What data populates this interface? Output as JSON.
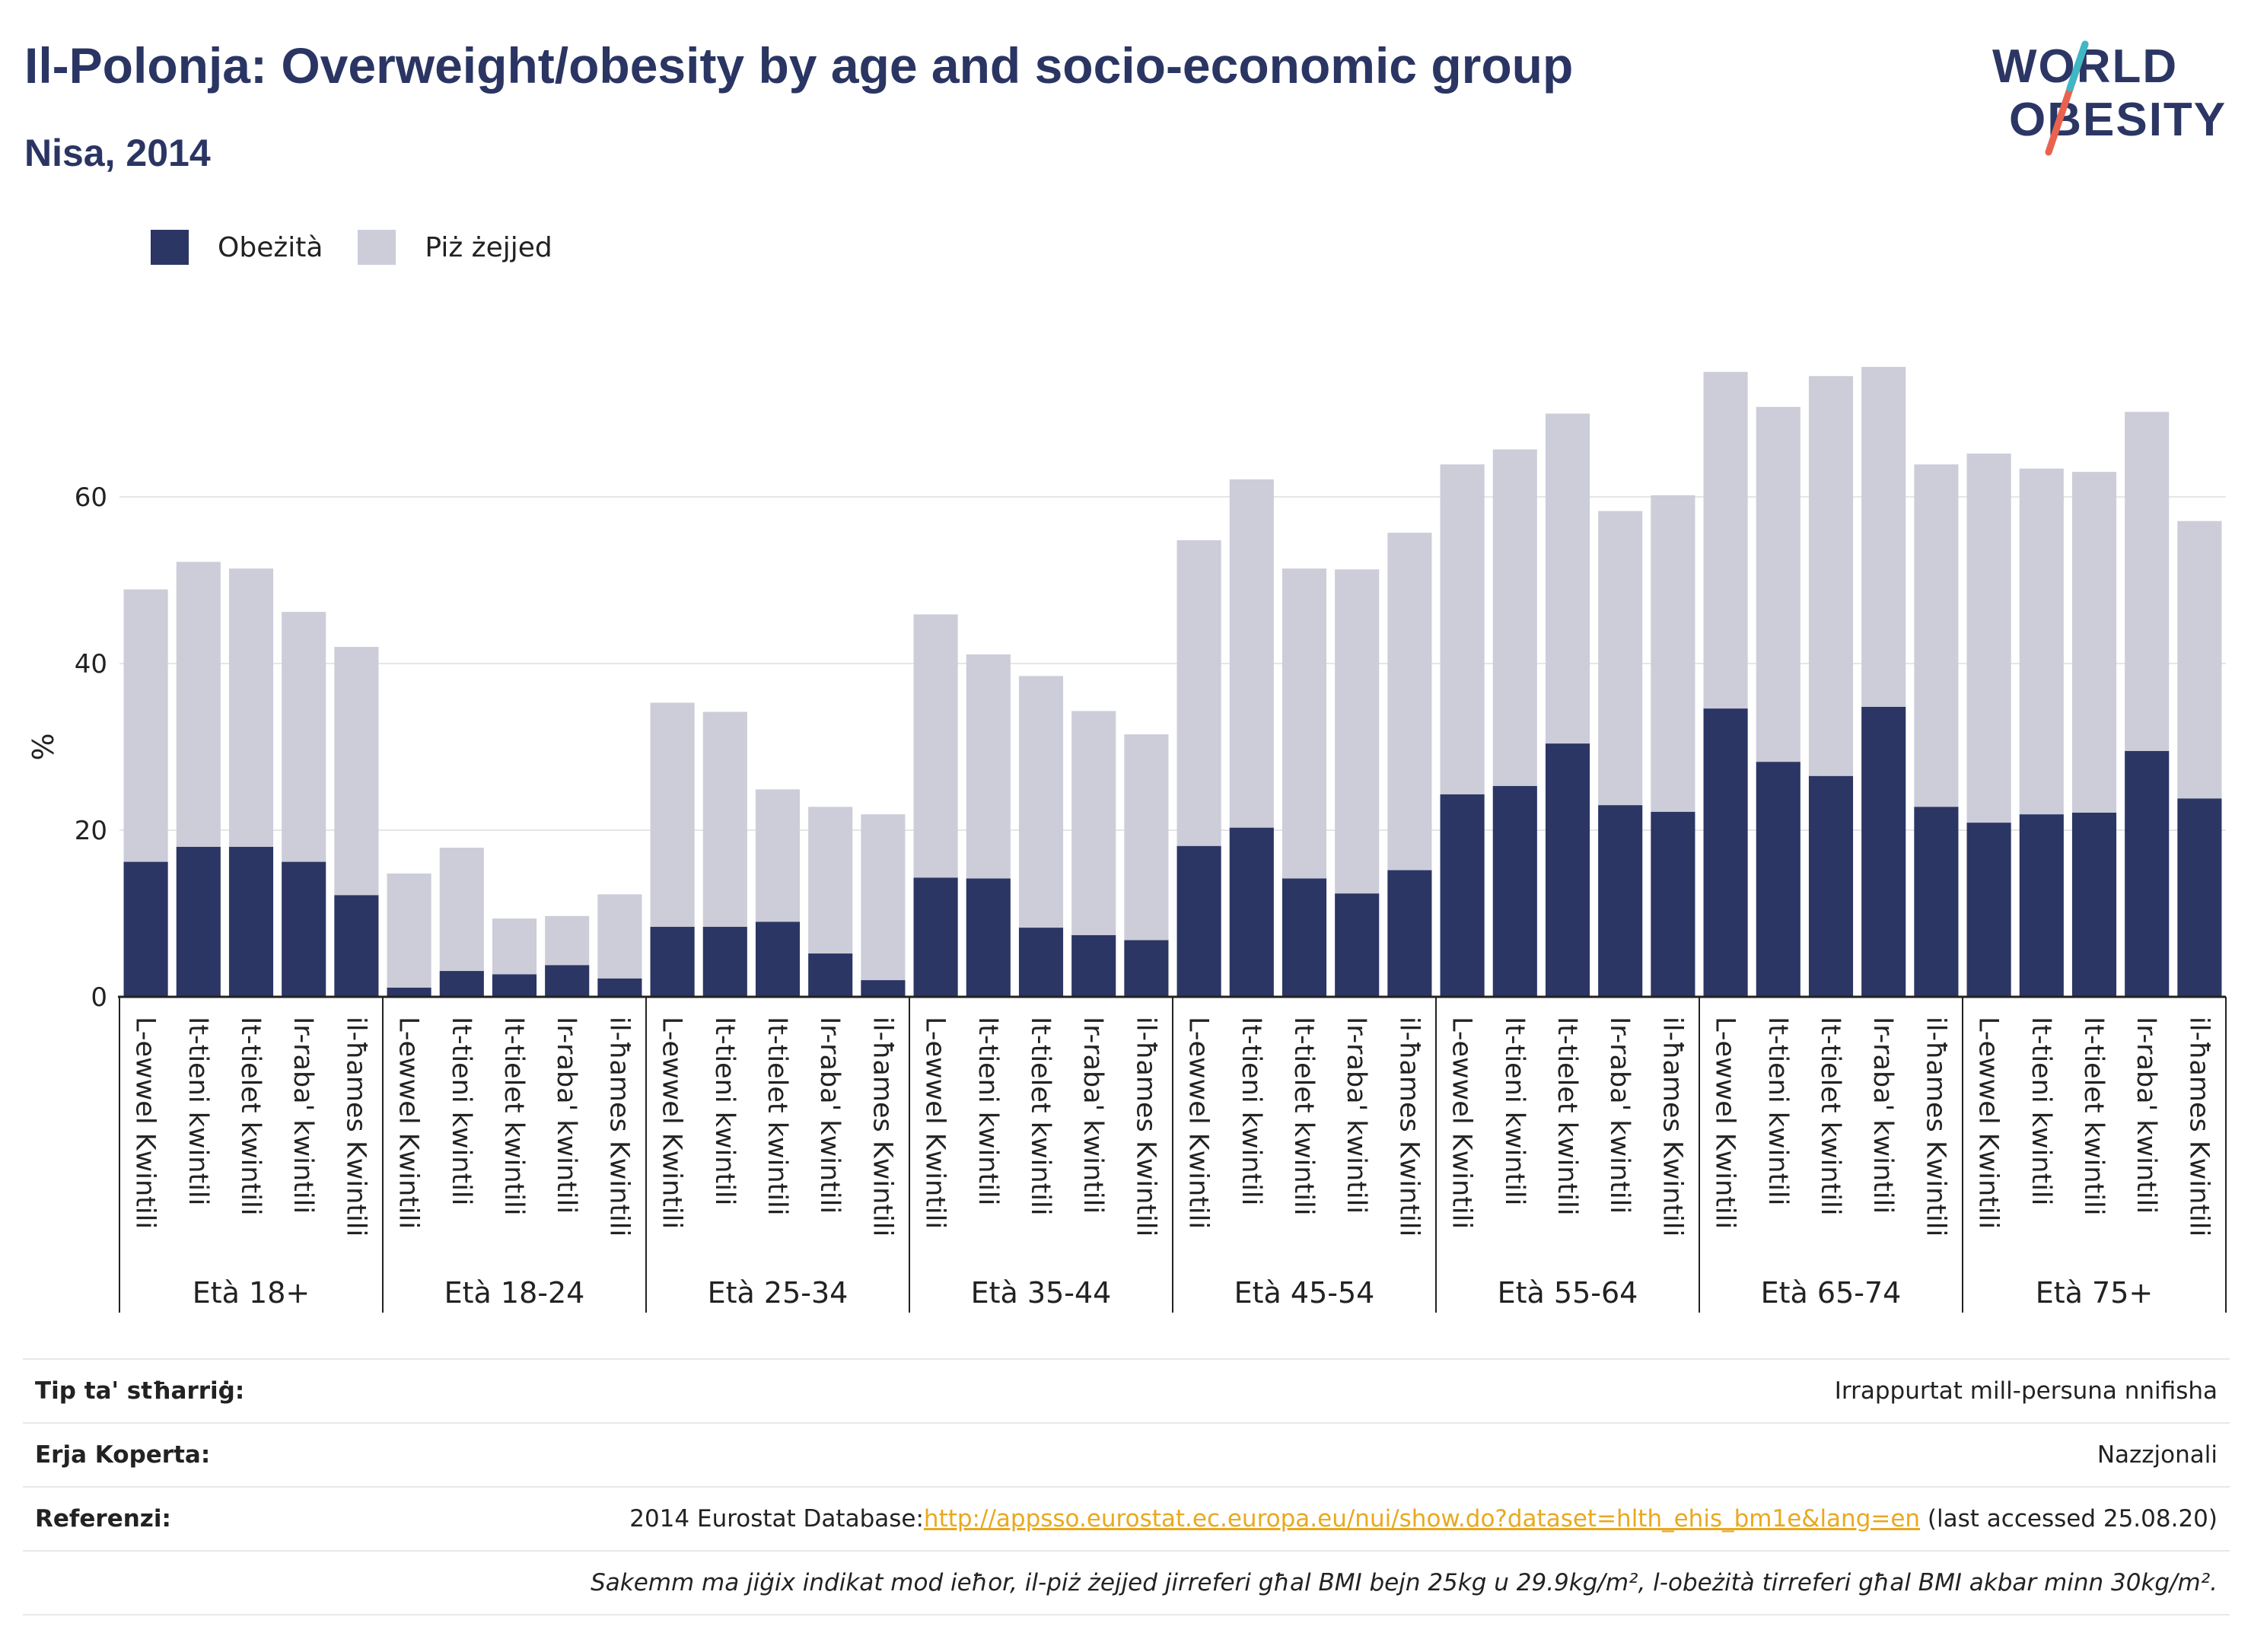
{
  "header": {
    "title": "Il-Polonja: Overweight/obesity by age and socio-economic group",
    "subtitle": "Nisa, 2014",
    "logo_line1": "WORLD",
    "logo_line2": "OBESITY"
  },
  "colors": {
    "obese": "#2b3664",
    "overweight": "#cccdd9",
    "grid": "#e6e6e6",
    "axis": "#222222",
    "link": "#e8a91f"
  },
  "legend": {
    "obese": "Obeżità",
    "overweight": "Piż żejjed"
  },
  "chart_data": {
    "type": "bar",
    "stacked": true,
    "ylabel": "%",
    "ylim": [
      0,
      80
    ],
    "yticks": [
      0,
      20,
      40,
      60
    ],
    "grid": true,
    "legend_position": "top-left",
    "quintiles": [
      "L-ewwel Kwintili",
      "It-tieni kwintili",
      "It-tielet kwintili",
      "Ir-raba' kwintili",
      "il-ħames Kwintili"
    ],
    "groups": [
      "Età 18+",
      "Età 18-24",
      "Età 25-34",
      "Età 35-44",
      "Età 45-54",
      "Età 55-64",
      "Età 65-74",
      "Età 75+"
    ],
    "series": [
      {
        "name": "Obeżità",
        "values": [
          16.2,
          18.0,
          18.0,
          16.2,
          12.2,
          1.1,
          3.1,
          2.7,
          3.8,
          2.2,
          8.4,
          8.4,
          9.0,
          5.2,
          2.0,
          14.3,
          14.2,
          8.3,
          7.4,
          6.8,
          18.1,
          20.3,
          14.2,
          12.4,
          15.2,
          24.3,
          25.3,
          30.4,
          23.0,
          22.2,
          34.6,
          28.2,
          26.5,
          34.8,
          22.8,
          20.9,
          21.9,
          22.1,
          29.5,
          23.8
        ]
      },
      {
        "name": "Piż żejjed",
        "values": [
          32.7,
          34.2,
          33.4,
          30.0,
          29.8,
          13.7,
          14.8,
          6.7,
          5.9,
          10.1,
          26.9,
          25.8,
          15.9,
          17.6,
          19.9,
          31.6,
          26.9,
          30.2,
          26.9,
          24.7,
          36.7,
          41.8,
          37.2,
          38.9,
          40.5,
          39.6,
          40.4,
          39.6,
          35.3,
          38.0,
          40.4,
          42.6,
          48.0,
          40.8,
          41.1,
          44.3,
          41.5,
          40.9,
          40.7,
          33.3
        ]
      }
    ]
  },
  "footer": {
    "tip_label": "Tip ta' stħarriġ:",
    "tip_value": "Irrappurtat mill-persuna nnifisha",
    "area_label": "Erja Koperta:",
    "area_value": "Nazzjonali",
    "ref_label": "Referenzi:",
    "ref_prefix": "2014 Eurostat Database:",
    "ref_link": "http://appsso.eurostat.ec.europa.eu/nui/show.do?dataset=hlth_ehis_bm1e&lang=en",
    "ref_suffix": " (last accessed 25.08.20)",
    "note": "Sakemm ma jiġix indikat mod ieħor, il-piż żejjed jirreferi għal BMI bejn 25kg u 29.9kg/m², l-obeżità tirreferi għal BMI akbar minn 30kg/m²."
  }
}
